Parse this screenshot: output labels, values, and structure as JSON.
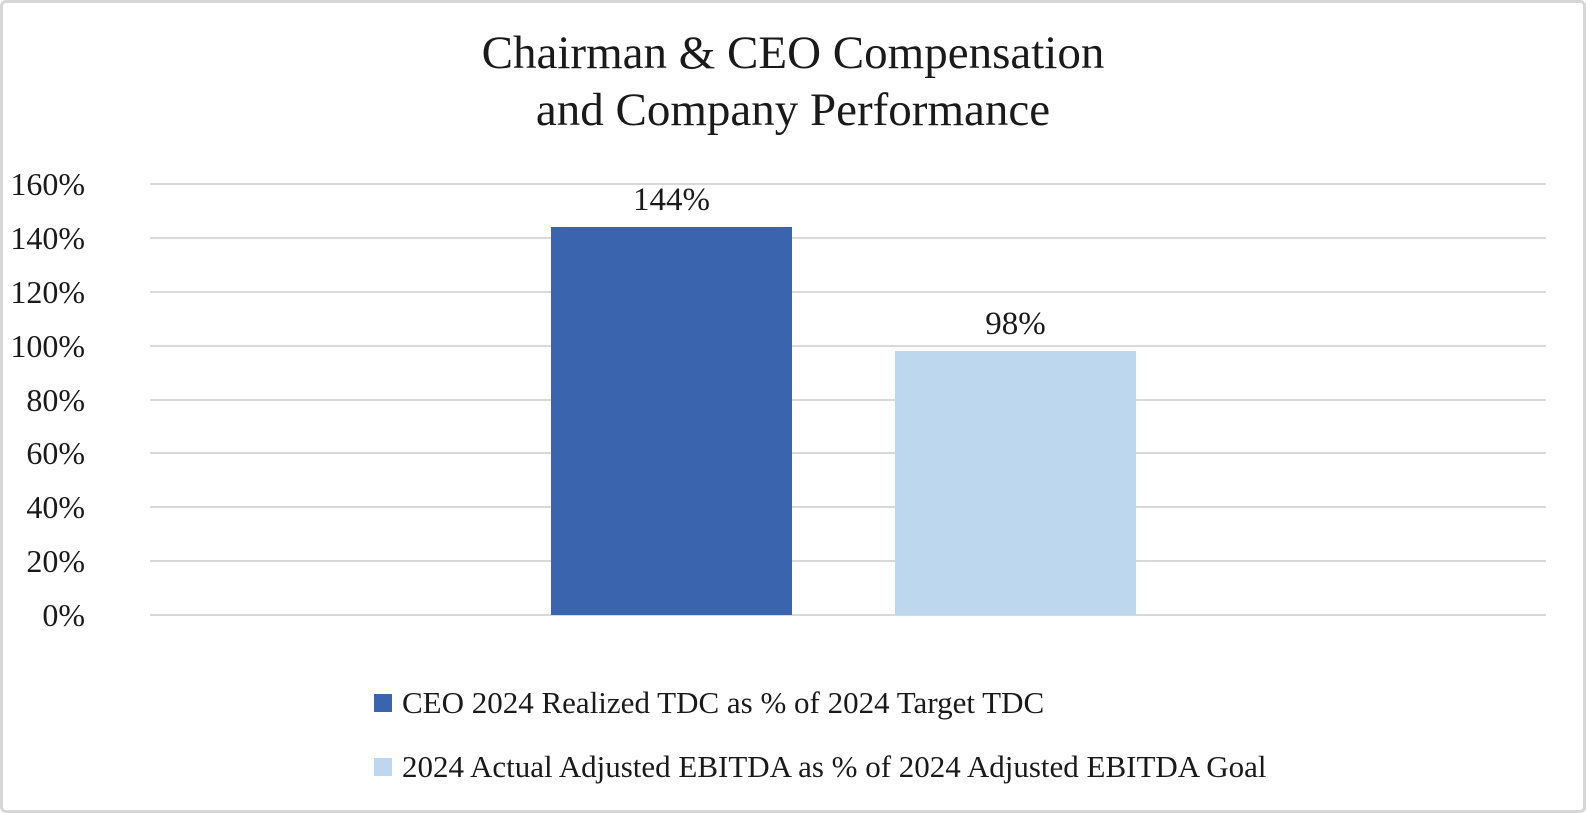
{
  "title": {
    "line1": "Chairman & CEO Compensation",
    "line2": "and Company Performance"
  },
  "chart_data": {
    "type": "bar",
    "title": "Chairman & CEO Compensation and Company Performance",
    "categories": [
      ""
    ],
    "series": [
      {
        "name": "CEO 2024 Realized TDC as % of 2024 Target TDC",
        "value": 144,
        "data_label": "144%",
        "color": "#3B64AE"
      },
      {
        "name": "2024 Actual Adjusted EBITDA as % of 2024 Adjusted EBITDA Goal",
        "value": 98,
        "data_label": "98%",
        "color": "#BDD7EE"
      }
    ],
    "xlabel": "",
    "ylabel": "",
    "ylim": [
      0,
      160
    ],
    "ytick_step": 20,
    "ytick_labels": [
      "0%",
      "20%",
      "40%",
      "60%",
      "80%",
      "100%",
      "120%",
      "140%",
      "160%"
    ],
    "grid": true,
    "gridline_color": "#D9D9D9",
    "legend_position": "bottom-left"
  },
  "colors": {
    "background": "#FFFFFF",
    "border": "#D7D7D7",
    "text": "#1A1A1A"
  }
}
